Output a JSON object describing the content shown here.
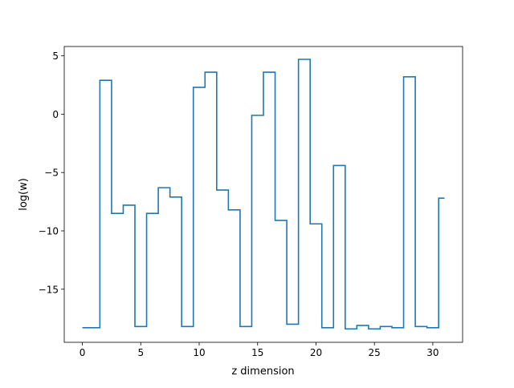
{
  "chart_data": {
    "type": "line",
    "drawstyle": "steps-mid",
    "xlabel": "z dimension",
    "ylabel": "log(w)",
    "xlim": [
      -1.55,
      32.55
    ],
    "ylim": [
      -19.55,
      5.8
    ],
    "xticks": [
      0,
      5,
      10,
      15,
      20,
      25,
      30
    ],
    "xtick_labels": [
      "0",
      "5",
      "10",
      "15",
      "20",
      "25",
      "30"
    ],
    "yticks": [
      5,
      0,
      -5,
      -10,
      -15
    ],
    "ytick_labels": [
      "5",
      "0",
      "−5",
      "−10",
      "−15"
    ],
    "grid": false,
    "legend": "none",
    "series": [
      {
        "color": "#1f77b4",
        "x": [
          0,
          1,
          2,
          3,
          4,
          5,
          6,
          7,
          8,
          9,
          10,
          11,
          12,
          13,
          14,
          15,
          16,
          17,
          18,
          19,
          20,
          21,
          22,
          23,
          24,
          25,
          26,
          27,
          28,
          29,
          30,
          31
        ],
        "values": [
          -18.3,
          -18.3,
          2.9,
          -8.5,
          -7.8,
          -18.2,
          -8.5,
          -6.3,
          -7.1,
          -18.2,
          2.3,
          3.6,
          -6.5,
          -8.2,
          -18.2,
          -0.1,
          3.6,
          -9.1,
          -18.0,
          4.7,
          -9.4,
          -18.3,
          -4.4,
          -18.4,
          -18.1,
          -18.4,
          -18.2,
          -18.3,
          3.2,
          -18.2,
          -18.3,
          -7.2
        ]
      }
    ]
  }
}
